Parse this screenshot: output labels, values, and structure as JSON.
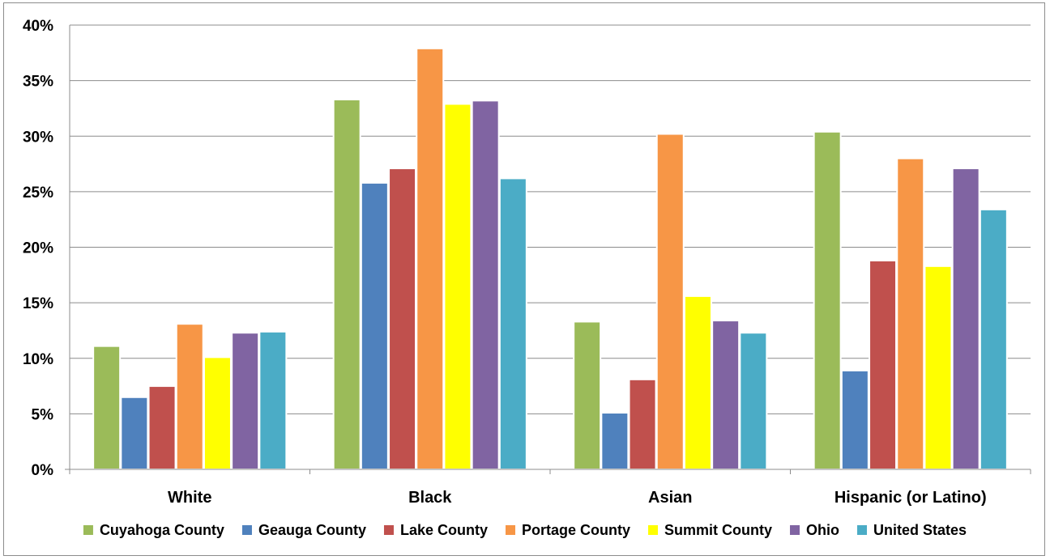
{
  "chart_data": {
    "type": "bar",
    "title": "",
    "xlabel": "",
    "ylabel": "",
    "ylim": [
      0,
      40
    ],
    "y_ticks": [
      "0%",
      "5%",
      "10%",
      "15%",
      "20%",
      "25%",
      "30%",
      "35%",
      "40%"
    ],
    "grid": true,
    "legend_position": "bottom",
    "categories": [
      "White",
      "Black",
      "Asian",
      "Hispanic (or Latino)"
    ],
    "series": [
      {
        "name": "Cuyahoga County",
        "color": "#9BBB59",
        "values": [
          11.1,
          33.3,
          13.3,
          30.4
        ]
      },
      {
        "name": "Geauga County",
        "color": "#4F81BD",
        "values": [
          6.5,
          25.8,
          5.1,
          8.9
        ]
      },
      {
        "name": "Lake County",
        "color": "#C0504D",
        "values": [
          7.5,
          27.1,
          8.1,
          18.8
        ]
      },
      {
        "name": "Portage County",
        "color": "#F79646",
        "values": [
          13.1,
          37.9,
          30.2,
          28.0
        ]
      },
      {
        "name": "Summit County",
        "color": "#FFFF00",
        "values": [
          10.1,
          32.9,
          15.6,
          18.3
        ]
      },
      {
        "name": "Ohio",
        "color": "#8064A2",
        "values": [
          12.3,
          33.2,
          13.4,
          27.1
        ]
      },
      {
        "name": "United States",
        "color": "#4BACC6",
        "values": [
          12.4,
          26.2,
          12.3,
          23.4
        ]
      }
    ]
  }
}
